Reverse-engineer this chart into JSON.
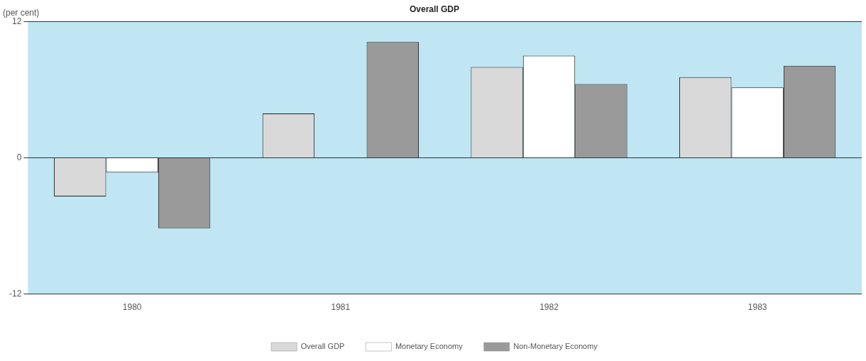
{
  "chart_data": {
    "type": "bar",
    "title": "Overall GDP",
    "ylabel": "(per cent)",
    "categories": [
      "1980",
      "1981",
      "1982",
      "1983"
    ],
    "series": [
      {
        "name": "Overall GDP",
        "color": "#d9d9d9",
        "values": [
          -3.4,
          3.9,
          8.0,
          7.1
        ]
      },
      {
        "name": "Monetary Economy",
        "color": "#ffffff",
        "values": [
          -1.3,
          null,
          9.0,
          6.2
        ]
      },
      {
        "name": "Non-Monetary Economy",
        "color": "#9a9a9a",
        "values": [
          -6.2,
          10.2,
          6.5,
          8.1
        ]
      }
    ],
    "ylim": [
      -12,
      12
    ],
    "yticks": [
      -12,
      0,
      12
    ],
    "grid": "y",
    "legend": "bottom"
  }
}
